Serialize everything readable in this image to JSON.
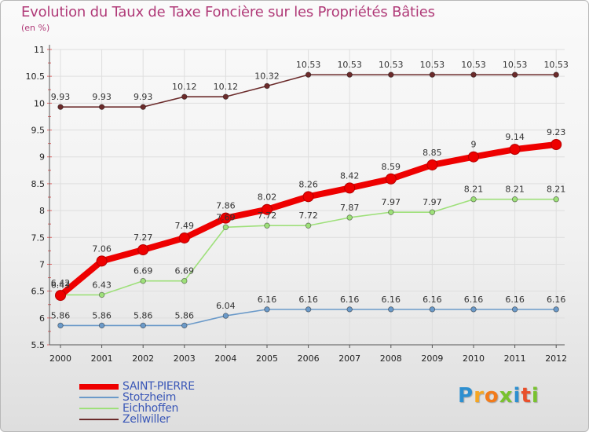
{
  "header": {
    "title": "Evolution du Taux de Taxe Foncière sur les Propriétés Bâties",
    "subtitle": "(en %)"
  },
  "logo": {
    "letters": [
      "P",
      "r",
      "o",
      "x",
      "i",
      "t",
      "i"
    ],
    "colors": [
      "#2d8fd0",
      "#f5a623",
      "#f27b1b",
      "#79c22f",
      "#2d8fd0",
      "#e94f2b",
      "#79c22f"
    ]
  },
  "chart_data": {
    "type": "line",
    "title": "Evolution du Taux de Taxe Foncière sur les Propriétés Bâties",
    "ylabel": "(en %)",
    "xlabel": "",
    "ylim": [
      5.5,
      11
    ],
    "yticks": [
      "5.5",
      "6",
      "6.5",
      "7",
      "7.5",
      "8",
      "8.5",
      "9",
      "9.5",
      "10",
      "10.5",
      "11"
    ],
    "categories": [
      "2000",
      "2001",
      "2002",
      "2003",
      "2004",
      "2005",
      "2006",
      "2007",
      "2008",
      "2009",
      "2010",
      "2011",
      "2012"
    ],
    "series": [
      {
        "name": "Zellwiller",
        "color": "#6b2b2b",
        "values": [
          9.93,
          9.93,
          9.93,
          10.12,
          10.12,
          10.32,
          10.53,
          10.53,
          10.53,
          10.53,
          10.53,
          10.53,
          10.53
        ],
        "labels": [
          "9.93",
          "9.93",
          "9.93",
          "10.12",
          "10.12",
          "10.32",
          "10.53",
          "10.53",
          "10.53",
          "10.53",
          "10.53",
          "10.53",
          "10.53"
        ]
      },
      {
        "name": "Eichhoffen",
        "color": "#9ee07a",
        "values": [
          6.43,
          6.43,
          6.69,
          6.69,
          7.69,
          7.72,
          7.72,
          7.87,
          7.97,
          7.97,
          8.21,
          8.21,
          8.21
        ],
        "labels": [
          "6.43",
          "6.43",
          "6.69",
          "6.69",
          "7.69",
          "7.72",
          "7.72",
          "7.87",
          "7.97",
          "7.97",
          "8.21",
          "8.21",
          "8.21"
        ]
      },
      {
        "name": "Stotzheim",
        "color": "#6b9ac9",
        "values": [
          5.86,
          5.86,
          5.86,
          5.86,
          6.04,
          6.16,
          6.16,
          6.16,
          6.16,
          6.16,
          6.16,
          6.16,
          6.16
        ],
        "labels": [
          "5.86",
          "5.86",
          "5.86",
          "5.86",
          "6.04",
          "6.16",
          "6.16",
          "6.16",
          "6.16",
          "6.16",
          "6.16",
          "6.16",
          "6.16"
        ]
      },
      {
        "name": "SAINT-PIERRE",
        "color": "#ee0000",
        "values": [
          6.42,
          7.06,
          7.27,
          7.49,
          7.86,
          8.02,
          8.26,
          8.42,
          8.59,
          8.85,
          9,
          9.14,
          9.23
        ],
        "labels": [
          "6.42",
          "7.06",
          "7.27",
          "7.49",
          "7.86",
          "8.02",
          "8.26",
          "8.42",
          "8.59",
          "8.85",
          "9",
          "9.14",
          "9.23"
        ]
      }
    ],
    "legend_order": [
      "SAINT-PIERRE",
      "Stotzheim",
      "Eichhoffen",
      "Zellwiller"
    ],
    "legend_position": "bottom-left"
  }
}
